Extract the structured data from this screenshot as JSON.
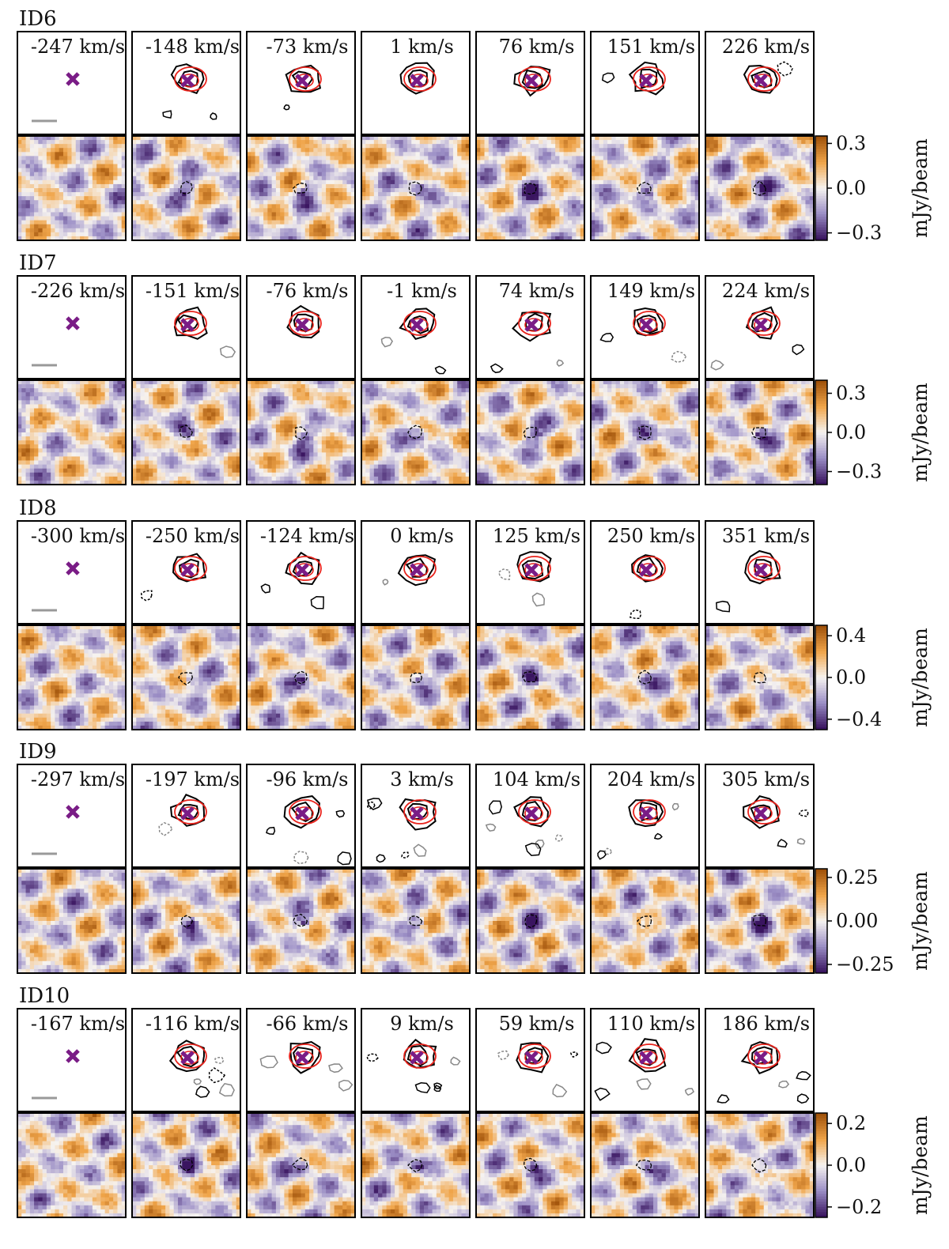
{
  "figure": {
    "colorbar_unit": "mJy/beam",
    "channel_unit": "km/s",
    "colors": {
      "marker": "#7a1c86",
      "model_contour": "#e8231c",
      "data_contour": "#000000",
      "negative_contour": "#888888",
      "cmap_high": "#a0520a",
      "cmap_mid_high": "#f0a54a",
      "cmap_zero": "#f6f3f0",
      "cmap_mid_low": "#9c8fc6",
      "cmap_low": "#3a1560",
      "scale_bar": "#999999"
    }
  },
  "chart_data": [
    {
      "type": "heatmap",
      "id": "ID6",
      "channels": [
        {
          "velocity": -247,
          "label": "-247 km/s",
          "has_emission": false,
          "has_scale_bar": true
        },
        {
          "velocity": -148,
          "label": "-148 km/s",
          "has_emission": true
        },
        {
          "velocity": -73,
          "label": "-73 km/s",
          "has_emission": true
        },
        {
          "velocity": 1,
          "label": "1 km/s",
          "has_emission": true
        },
        {
          "velocity": 76,
          "label": "76 km/s",
          "has_emission": true
        },
        {
          "velocity": 151,
          "label": "151 km/s",
          "has_emission": true
        },
        {
          "velocity": 226,
          "label": "226 km/s",
          "has_emission": true
        }
      ],
      "colorbar": {
        "vmin": -0.35,
        "vmax": 0.35,
        "ticks": [
          0.3,
          0.0,
          -0.3
        ],
        "tick_labels": [
          "0.3",
          "0.0",
          "−0.3"
        ],
        "label": "mJy/beam"
      }
    },
    {
      "type": "heatmap",
      "id": "ID7",
      "channels": [
        {
          "velocity": -226,
          "label": "-226 km/s",
          "has_emission": false,
          "has_scale_bar": true
        },
        {
          "velocity": -151,
          "label": "-151 km/s",
          "has_emission": true
        },
        {
          "velocity": -76,
          "label": "-76 km/s",
          "has_emission": true
        },
        {
          "velocity": -1,
          "label": "-1 km/s",
          "has_emission": true
        },
        {
          "velocity": 74,
          "label": "74 km/s",
          "has_emission": true
        },
        {
          "velocity": 149,
          "label": "149 km/s",
          "has_emission": true
        },
        {
          "velocity": 224,
          "label": "224 km/s",
          "has_emission": true
        }
      ],
      "colorbar": {
        "vmin": -0.4,
        "vmax": 0.4,
        "ticks": [
          0.3,
          0.0,
          -0.3
        ],
        "tick_labels": [
          "0.3",
          "0.0",
          "−0.3"
        ],
        "label": "mJy/beam"
      }
    },
    {
      "type": "heatmap",
      "id": "ID8",
      "channels": [
        {
          "velocity": -300,
          "label": "-300 km/s",
          "has_emission": false,
          "has_scale_bar": true
        },
        {
          "velocity": -250,
          "label": "-250 km/s",
          "has_emission": true
        },
        {
          "velocity": -124,
          "label": "-124 km/s",
          "has_emission": true
        },
        {
          "velocity": 0,
          "label": "0 km/s",
          "has_emission": true
        },
        {
          "velocity": 125,
          "label": "125 km/s",
          "has_emission": true
        },
        {
          "velocity": 250,
          "label": "250 km/s",
          "has_emission": true
        },
        {
          "velocity": 351,
          "label": "351 km/s",
          "has_emission": true
        }
      ],
      "colorbar": {
        "vmin": -0.5,
        "vmax": 0.5,
        "ticks": [
          0.4,
          0.0,
          -0.4
        ],
        "tick_labels": [
          "0.4",
          "0.0",
          "−0.4"
        ],
        "label": "mJy/beam"
      }
    },
    {
      "type": "heatmap",
      "id": "ID9",
      "channels": [
        {
          "velocity": -297,
          "label": "-297 km/s",
          "has_emission": false,
          "has_scale_bar": true
        },
        {
          "velocity": -197,
          "label": "-197 km/s",
          "has_emission": true
        },
        {
          "velocity": -96,
          "label": "-96 km/s",
          "has_emission": true
        },
        {
          "velocity": 3,
          "label": "3 km/s",
          "has_emission": true
        },
        {
          "velocity": 104,
          "label": "104 km/s",
          "has_emission": true
        },
        {
          "velocity": 204,
          "label": "204 km/s",
          "has_emission": true
        },
        {
          "velocity": 305,
          "label": "305 km/s",
          "has_emission": true
        }
      ],
      "colorbar": {
        "vmin": -0.3,
        "vmax": 0.3,
        "ticks": [
          0.25,
          0.0,
          -0.25
        ],
        "tick_labels": [
          "0.25",
          "0.00",
          "−0.25"
        ],
        "label": "mJy/beam"
      }
    },
    {
      "type": "heatmap",
      "id": "ID10",
      "channels": [
        {
          "velocity": -167,
          "label": "-167 km/s",
          "has_emission": false,
          "has_scale_bar": true
        },
        {
          "velocity": -116,
          "label": "-116 km/s",
          "has_emission": true
        },
        {
          "velocity": -66,
          "label": "-66 km/s",
          "has_emission": true
        },
        {
          "velocity": 9,
          "label": "9 km/s",
          "has_emission": true
        },
        {
          "velocity": 59,
          "label": "59 km/s",
          "has_emission": true
        },
        {
          "velocity": 110,
          "label": "110 km/s",
          "has_emission": true
        },
        {
          "velocity": 186,
          "label": "186 km/s",
          "has_emission": true
        }
      ],
      "colorbar": {
        "vmin": -0.25,
        "vmax": 0.25,
        "ticks": [
          0.2,
          0.0,
          -0.2
        ],
        "tick_labels": [
          "0.2",
          "0.0",
          "−0.2"
        ],
        "label": "mJy/beam"
      }
    }
  ]
}
